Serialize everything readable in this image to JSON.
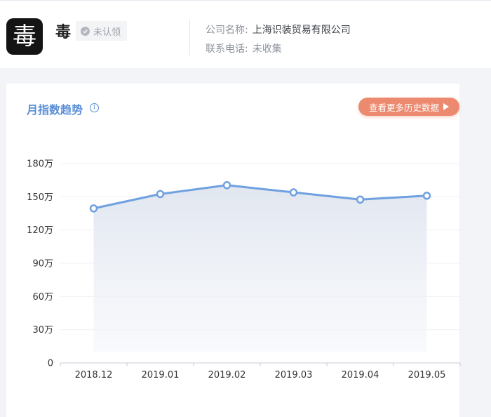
{
  "header": {
    "app_icon_glyph": "毒",
    "app_name": "毒",
    "claim_status": "未认领",
    "company_label": "公司名称:",
    "company_name": "上海识装贸易有限公司",
    "phone_label": "联系电话:",
    "phone_value": "未收集"
  },
  "card": {
    "title": "月指数趋势",
    "more_button_label": "查看更多历史数据"
  },
  "colors": {
    "line": "#6fa1e0",
    "button": "#ec8a70",
    "title": "#5b8fd6"
  },
  "icons": [
    "app-logo-icon",
    "check-icon",
    "info-icon",
    "play-icon"
  ],
  "chart_data": {
    "type": "area",
    "title": "月指数趋势",
    "categories": [
      "2018.12",
      "2019.01",
      "2019.02",
      "2019.03",
      "2019.04",
      "2019.05"
    ],
    "series": [
      {
        "values": [
          1395000,
          1525000,
          1605000,
          1540000,
          1475000,
          1510000
        ]
      }
    ],
    "y_ticks": [
      0,
      300000,
      600000,
      900000,
      1200000,
      1500000,
      1800000
    ],
    "y_tick_labels": [
      "0",
      "30万",
      "60万",
      "90万",
      "120万",
      "150万",
      "180万"
    ],
    "ylim": [
      0,
      1800000
    ],
    "xlabel": "",
    "ylabel": "",
    "grid": true
  }
}
